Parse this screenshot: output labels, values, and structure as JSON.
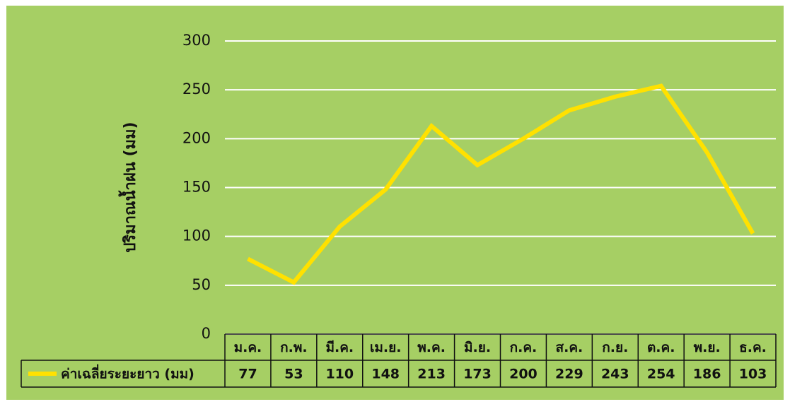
{
  "chart_data": {
    "type": "line",
    "ylabel": "ปริมาณน้ำฝน (มม)",
    "categories": [
      "ม.ค.",
      "ก.พ.",
      "มี.ค.",
      "เม.ย.",
      "พ.ค.",
      "มิ.ย.",
      "ก.ค.",
      "ส.ค.",
      "ก.ย.",
      "ต.ค.",
      "พ.ย.",
      "ธ.ค."
    ],
    "series": [
      {
        "name": "ค่าเฉลี่ยระยะยาว (มม)",
        "color": "#ffe100",
        "values": [
          77,
          53,
          110,
          148,
          213,
          173,
          200,
          229,
          243,
          254,
          186,
          103
        ]
      }
    ],
    "ylim": [
      0,
      300
    ],
    "yticks": [
      0,
      50,
      100,
      150,
      200,
      250,
      300
    ],
    "grid": true
  }
}
